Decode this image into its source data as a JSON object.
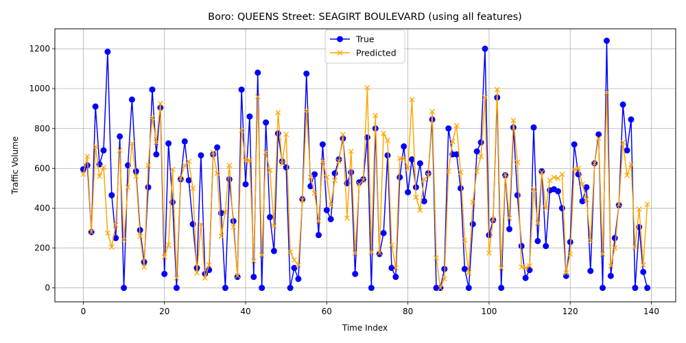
{
  "chart_data": {
    "type": "line",
    "title": "Boro: QUEENS Street: SEAGIRT BOULEVARD (using all features)",
    "xlabel": "Time Index",
    "ylabel": "Traffic Volume",
    "xlim": [
      -7,
      146
    ],
    "ylim": [
      -70,
      1300
    ],
    "xticks": [
      0,
      20,
      40,
      60,
      80,
      100,
      120,
      140
    ],
    "yticks": [
      0,
      200,
      400,
      600,
      800,
      1000,
      1200
    ],
    "grid": true,
    "legend_position": "upper center",
    "x": [
      0,
      1,
      2,
      3,
      4,
      5,
      6,
      7,
      8,
      9,
      10,
      11,
      12,
      13,
      14,
      15,
      16,
      17,
      18,
      19,
      20,
      21,
      22,
      23,
      24,
      25,
      26,
      27,
      28,
      29,
      30,
      31,
      32,
      33,
      34,
      35,
      36,
      37,
      38,
      39,
      40,
      41,
      42,
      43,
      44,
      45,
      46,
      47,
      48,
      49,
      50,
      51,
      52,
      53,
      54,
      55,
      56,
      57,
      58,
      59,
      60,
      61,
      62,
      63,
      64,
      65,
      66,
      67,
      68,
      69,
      70,
      71,
      72,
      73,
      74,
      75,
      76,
      77,
      78,
      79,
      80,
      81,
      82,
      83,
      84,
      85,
      86,
      87,
      88,
      89,
      90,
      91,
      92,
      93,
      94,
      95,
      96,
      97,
      98,
      99,
      100,
      101,
      102,
      103,
      104,
      105,
      106,
      107,
      108,
      109,
      110,
      111,
      112,
      113,
      114,
      115,
      116,
      117,
      118,
      119,
      120,
      121,
      122,
      123,
      124,
      125,
      126,
      127,
      128,
      129,
      130,
      131,
      132,
      133,
      134,
      135,
      136,
      137,
      138,
      139
    ],
    "series": [
      {
        "name": "True",
        "color": "#0000ff",
        "marker": "circle",
        "values": [
          595,
          615,
          280,
          910,
          620,
          690,
          1185,
          465,
          250,
          760,
          0,
          615,
          945,
          585,
          290,
          130,
          505,
          995,
          670,
          905,
          70,
          725,
          430,
          0,
          545,
          735,
          540,
          320,
          100,
          665,
          70,
          90,
          670,
          705,
          375,
          0,
          545,
          335,
          55,
          995,
          520,
          860,
          55,
          1080,
          0,
          830,
          355,
          185,
          775,
          635,
          605,
          0,
          100,
          45,
          445,
          1075,
          510,
          570,
          265,
          720,
          390,
          345,
          575,
          645,
          750,
          525,
          580,
          70,
          530,
          545,
          755,
          0,
          800,
          170,
          275,
          665,
          100,
          55,
          555,
          710,
          480,
          645,
          505,
          625,
          435,
          575,
          845,
          0,
          0,
          95,
          800,
          670,
          670,
          500,
          95,
          0,
          320,
          685,
          730,
          1200,
          265,
          340,
          955,
          0,
          565,
          295,
          805,
          465,
          210,
          50,
          90,
          805,
          235,
          585,
          210,
          490,
          495,
          485,
          400,
          60,
          230,
          720,
          570,
          435,
          505,
          85,
          625,
          770,
          0,
          1240,
          60,
          250,
          415,
          920,
          690,
          845,
          0,
          305,
          80,
          0
        ]
      },
      {
        "name": "Predicted",
        "color": "#ffa500",
        "marker": "x",
        "values": [
          570,
          660,
          280,
          710,
          560,
          605,
          275,
          205,
          315,
          690,
          240,
          505,
          725,
          560,
          260,
          105,
          615,
          855,
          730,
          925,
          155,
          215,
          595,
          50,
          550,
          615,
          635,
          500,
          75,
          320,
          50,
          115,
          680,
          575,
          260,
          380,
          615,
          305,
          60,
          790,
          640,
          640,
          135,
          960,
          165,
          680,
          590,
          310,
          880,
          625,
          770,
          180,
          140,
          115,
          440,
          890,
          555,
          475,
          335,
          635,
          555,
          415,
          540,
          635,
          770,
          350,
          685,
          175,
          520,
          540,
          1005,
          180,
          865,
          175,
          775,
          740,
          215,
          100,
          650,
          650,
          600,
          945,
          455,
          390,
          545,
          565,
          885,
          150,
          0,
          45,
          585,
          735,
          815,
          580,
          240,
          75,
          430,
          585,
          660,
          955,
          175,
          345,
          995,
          100,
          570,
          350,
          840,
          630,
          105,
          100,
          110,
          495,
          325,
          580,
          400,
          540,
          555,
          550,
          570,
          75,
          170,
          595,
          600,
          520,
          445,
          235,
          625,
          750,
          170,
          980,
          110,
          200,
          420,
          730,
          565,
          620,
          205,
          395,
          115,
          420
        ]
      }
    ]
  }
}
